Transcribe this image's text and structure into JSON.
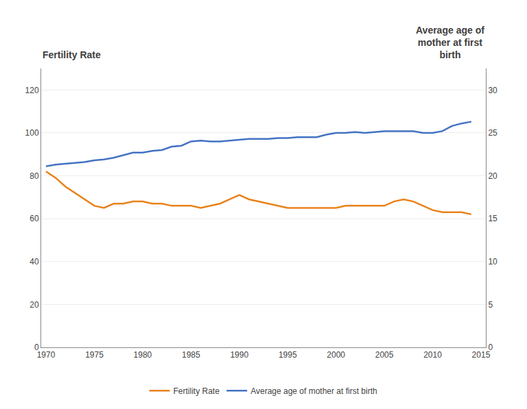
{
  "chart_data": {
    "type": "line",
    "ylabel": "Fertility Rate",
    "y2label": "Average age of\nmother at first\nbirth",
    "x": [
      1970,
      1971,
      1972,
      1973,
      1974,
      1975,
      1976,
      1977,
      1978,
      1979,
      1980,
      1981,
      1982,
      1983,
      1984,
      1985,
      1986,
      1987,
      1988,
      1989,
      1990,
      1991,
      1992,
      1993,
      1994,
      1995,
      1996,
      1997,
      1998,
      1999,
      2000,
      2001,
      2002,
      2003,
      2004,
      2005,
      2006,
      2007,
      2008,
      2009,
      2010,
      2011,
      2012,
      2013,
      2014
    ],
    "series": [
      {
        "name": "Fertility Rate",
        "color": "#E8821A",
        "values": [
          82,
          79,
          75,
          72,
          69,
          66,
          65,
          67,
          67,
          68,
          68,
          67,
          67,
          66,
          66,
          66,
          65,
          66,
          67,
          69,
          71,
          69,
          68,
          67,
          66,
          65,
          65,
          65,
          65,
          65,
          65,
          66,
          66,
          66,
          66,
          66,
          68,
          69,
          68,
          66,
          64,
          63,
          63,
          63,
          62
        ]
      },
      {
        "name": "Average age of mother at first birth",
        "color": "#4472C4",
        "axis": "y2",
        "values": [
          21.1,
          21.3,
          21.4,
          21.5,
          21.6,
          21.8,
          21.9,
          22.1,
          22.4,
          22.7,
          22.7,
          22.9,
          23.0,
          23.4,
          23.5,
          24.0,
          24.1,
          24.0,
          24.0,
          24.1,
          24.2,
          24.3,
          24.3,
          24.3,
          24.4,
          24.4,
          24.5,
          24.5,
          24.5,
          24.8,
          25.0,
          25.0,
          25.1,
          25.0,
          25.1,
          25.2,
          25.2,
          25.2,
          25.2,
          25.0,
          25.0,
          25.2,
          25.8,
          26.1,
          26.3
        ]
      }
    ],
    "xlim": [
      1969.5,
      2015.5
    ],
    "xticks": [
      1970,
      1975,
      1980,
      1985,
      1990,
      1995,
      2000,
      2005,
      2010,
      2015
    ],
    "ylim": [
      0,
      130
    ],
    "yticks": [
      0,
      20,
      40,
      60,
      80,
      100,
      120
    ],
    "y2lim": [
      0,
      32.5
    ],
    "y2ticks": [
      0,
      5,
      10,
      15,
      20,
      25,
      30
    ],
    "grid": true,
    "legend": "bottom"
  }
}
